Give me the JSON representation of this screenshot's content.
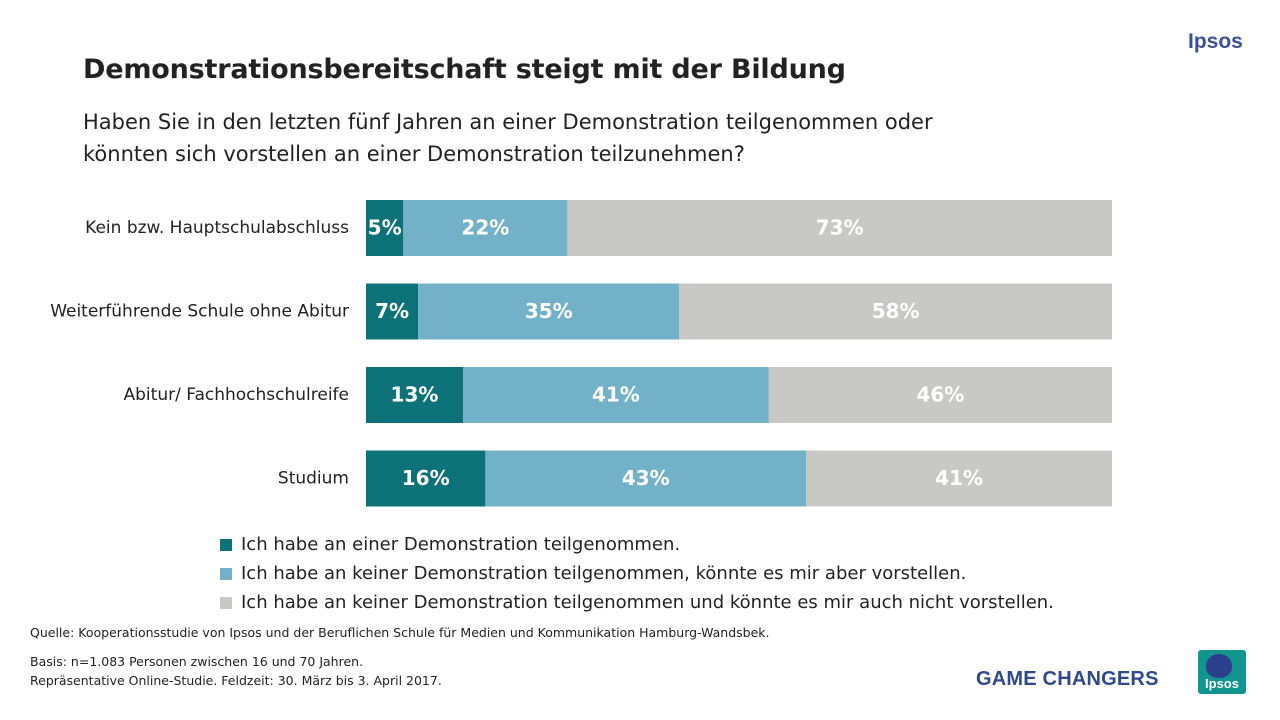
{
  "brand": {
    "top_logo_text": "Ipsos",
    "tagline": "GAME CHANGERS",
    "bottom_logo_text": "Ipsos"
  },
  "header": {
    "title": "Demonstrationsbereitschaft steigt mit der Bildung",
    "subtitle_line1": "Haben Sie in den letzten fünf Jahren an einer Demonstration teilgenommen oder",
    "subtitle_line2": "könnten sich vorstellen an einer Demonstration teilzunehmen?"
  },
  "chart_data": {
    "type": "bar",
    "orientation": "horizontal",
    "stacked": true,
    "percent_stacked": true,
    "title": "Demonstrationsbereitschaft steigt mit der Bildung",
    "categories": [
      "Kein bzw. Hauptschulabschluss",
      "Weiterführende Schule ohne Abitur",
      "Abitur/ Fachhochschulreife",
      "Studium"
    ],
    "series": [
      {
        "name": "Ich habe an einer Demonstration teilgenommen.",
        "color": "#0d7178",
        "values": [
          5,
          7,
          13,
          16
        ]
      },
      {
        "name": "Ich habe an keiner Demonstration teilgenommen, könnte es mir aber vorstellen.",
        "color": "#72b1c8",
        "values": [
          22,
          35,
          41,
          43
        ]
      },
      {
        "name": "Ich habe an keiner Demonstration teilgenommen und könnte es mir auch nicht vorstellen.",
        "color": "#c8c8c6",
        "values": [
          73,
          58,
          46,
          41
        ]
      }
    ],
    "value_suffix": "%",
    "xlim": [
      0,
      100
    ],
    "grid": false,
    "legend_position": "bottom-left"
  },
  "footer": {
    "source": "Quelle: Kooperationsstudie von Ipsos und der Beruflichen Schule für Medien und Kommunikation Hamburg-Wandsbek.",
    "basis_line1": "Basis: n=1.083 Personen zwischen 16 und 70 Jahren.",
    "basis_line2": "Repräsentative Online-Studie. Feldzeit: 30. März bis 3. April 2017."
  }
}
